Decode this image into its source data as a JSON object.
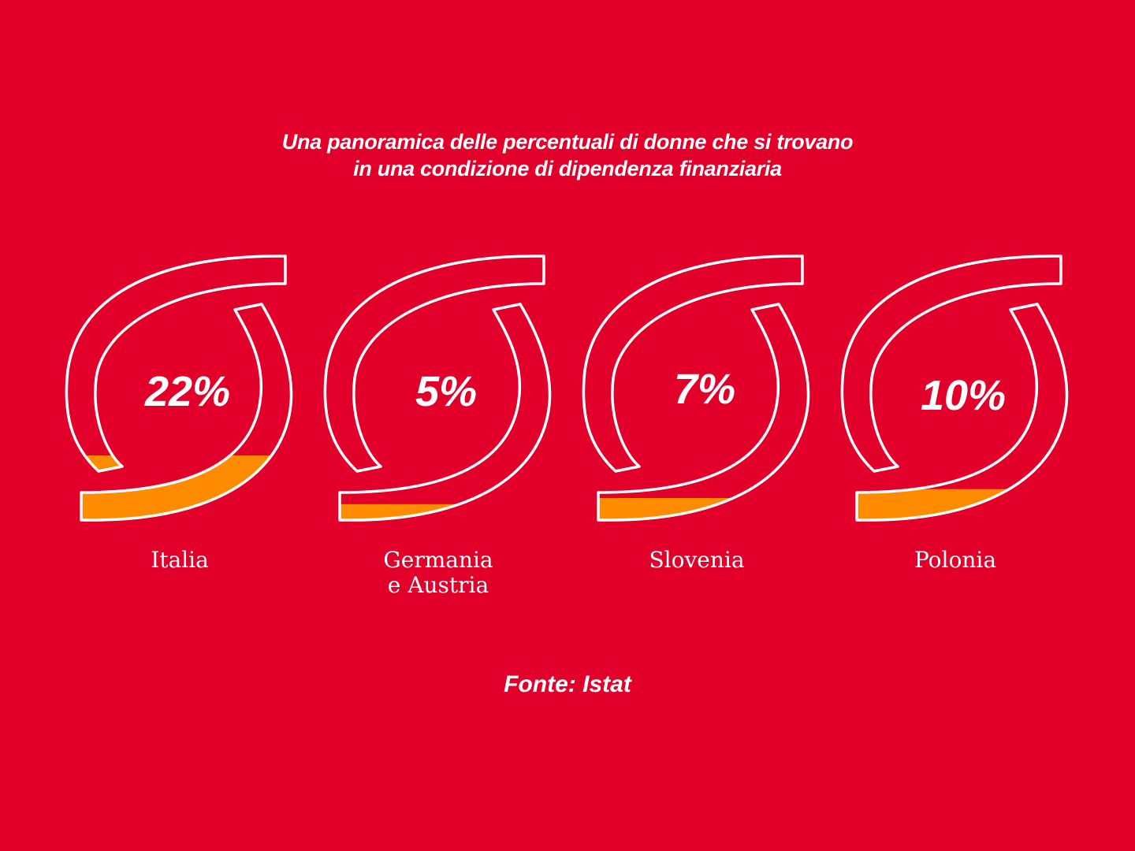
{
  "title": {
    "line1": "Una panoramica delle percentuali di donne che si trovano",
    "line2": "in una condizione di dipendenza finanziaria"
  },
  "source": "Fonte: Istat",
  "colors": {
    "background": "#E2002B",
    "outline": "#FFFFFF",
    "fill": "#FF8C00"
  },
  "chart_data": {
    "type": "gauge",
    "unit": "%",
    "max": 100,
    "items": [
      {
        "label_lines": [
          "Italia"
        ],
        "value": 22,
        "display": "22%"
      },
      {
        "label_lines": [
          "Germania",
          "e Austria"
        ],
        "value": 5,
        "display": "5%"
      },
      {
        "label_lines": [
          "Slovenia"
        ],
        "value": 7,
        "display": "7%"
      },
      {
        "label_lines": [
          "Polonia"
        ],
        "value": 10,
        "display": "10%"
      }
    ]
  }
}
